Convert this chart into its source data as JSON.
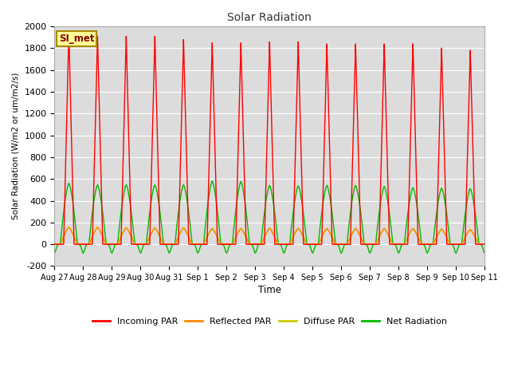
{
  "title": "Solar Radiation",
  "xlabel": "Time",
  "ylabel": "Solar Radiation (W/m2 or um/m2/s)",
  "ylim": [
    -200,
    2000
  ],
  "num_days": 15,
  "label_box_text": "SI_met",
  "label_box_color": "#ffff99",
  "label_box_border": "#aa8800",
  "label_box_text_color": "#880000",
  "bg_color": "#dcdcdc",
  "grid_color": "#ffffff",
  "incoming_peaks": [
    1950,
    1910,
    1910,
    1910,
    1880,
    1850,
    1850,
    1860,
    1860,
    1840,
    1840,
    1840,
    1840,
    1800,
    1780
  ],
  "reflected_peaks": [
    155,
    155,
    150,
    148,
    148,
    143,
    143,
    145,
    145,
    143,
    143,
    143,
    143,
    138,
    133
  ],
  "diffuse_peaks": [
    160,
    160,
    155,
    153,
    153,
    147,
    147,
    150,
    150,
    147,
    147,
    147,
    147,
    142,
    137
  ],
  "net_peaks": [
    560,
    545,
    545,
    545,
    545,
    580,
    575,
    540,
    535,
    540,
    540,
    530,
    520,
    515,
    510
  ],
  "net_night_min": -80,
  "tick_labels": [
    "Aug 27",
    "Aug 28",
    "Aug 29",
    "Aug 30",
    "Aug 31",
    "Sep 1",
    "Sep 2",
    "Sep 3",
    "Sep 4",
    "Sep 5",
    "Sep 6",
    "Sep 7",
    "Sep 8",
    "Sep 9",
    "Sep 10",
    "Sep 11"
  ],
  "yticks": [
    -200,
    0,
    200,
    400,
    600,
    800,
    1000,
    1200,
    1400,
    1600,
    1800,
    2000
  ],
  "legend_items": [
    {
      "label": "Incoming PAR",
      "color": "#ff0000"
    },
    {
      "label": "Reflected PAR",
      "color": "#ff8800"
    },
    {
      "label": "Diffuse PAR",
      "color": "#cccc00"
    },
    {
      "label": "Net Radiation",
      "color": "#00bb00"
    }
  ]
}
